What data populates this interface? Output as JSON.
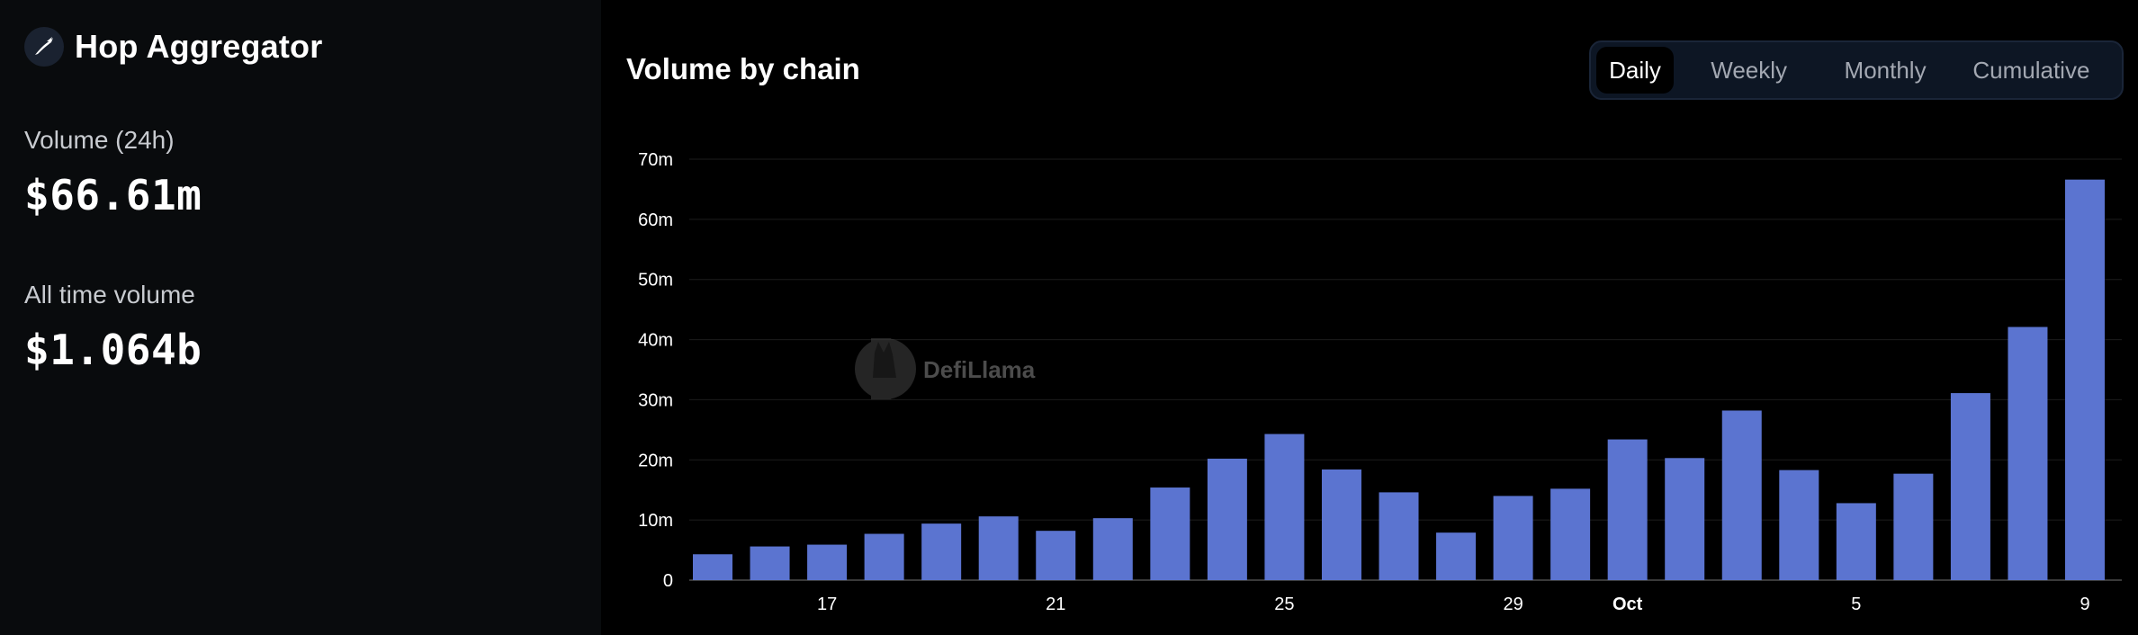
{
  "protocol": {
    "name": "Hop Aggregator",
    "logo_icon": "rabbit-icon"
  },
  "stats": {
    "volume_24h_label": "Volume (24h)",
    "volume_24h_value": "$66.61m",
    "all_time_label": "All time volume",
    "all_time_value": "$1.064b"
  },
  "chart_header": {
    "title": "Volume by chain",
    "toggle": {
      "daily": "Daily",
      "weekly": "Weekly",
      "monthly": "Monthly",
      "cumulative": "Cumulative",
      "selected": "Daily"
    }
  },
  "watermark": {
    "text": "DefiLlama"
  },
  "chart_data": {
    "type": "bar",
    "title": "Volume by chain",
    "xlabel": "",
    "ylabel": "",
    "ylim": [
      0,
      70
    ],
    "y_unit": "m",
    "yticks": [
      "0",
      "10m",
      "20m",
      "30m",
      "40m",
      "50m",
      "60m",
      "70m"
    ],
    "grid": true,
    "bar_color": "#5b74d0",
    "categories": [
      "Sep 15",
      "Sep 16",
      "Sep 17",
      "Sep 18",
      "Sep 19",
      "Sep 20",
      "Sep 21",
      "Sep 22",
      "Sep 23",
      "Sep 24",
      "Sep 25",
      "Sep 26",
      "Sep 27",
      "Sep 28",
      "Sep 29",
      "Sep 30",
      "Oct 1",
      "Oct 2",
      "Oct 3",
      "Oct 4",
      "Oct 5",
      "Oct 6",
      "Oct 7",
      "Oct 8",
      "Oct 9"
    ],
    "values": [
      4.3,
      5.6,
      5.9,
      7.7,
      9.4,
      10.6,
      8.2,
      10.3,
      15.4,
      20.2,
      24.3,
      18.4,
      14.6,
      7.9,
      14.0,
      15.2,
      23.4,
      20.3,
      28.2,
      18.3,
      12.8,
      17.7,
      31.1,
      42.1,
      66.61
    ],
    "xticks": [
      {
        "label": "17",
        "index": 2
      },
      {
        "label": "21",
        "index": 6
      },
      {
        "label": "25",
        "index": 10
      },
      {
        "label": "29",
        "index": 14
      },
      {
        "label": "Oct",
        "index": 16,
        "bold": true
      },
      {
        "label": "5",
        "index": 20
      },
      {
        "label": "9",
        "index": 24
      }
    ]
  }
}
